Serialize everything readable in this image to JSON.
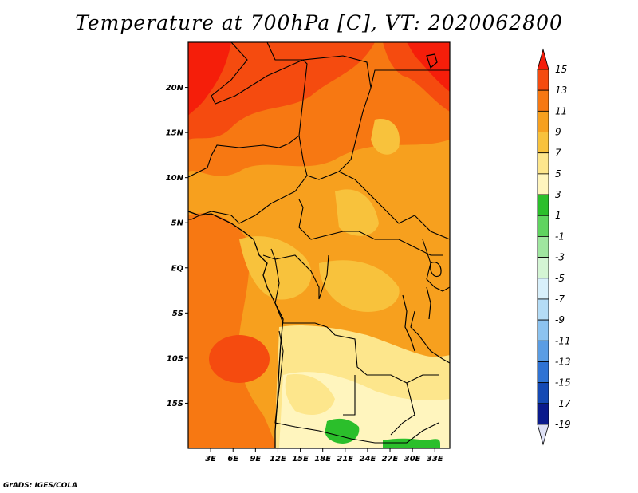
{
  "title": "Temperature at 700hPa [C], VT: 2020062800",
  "credit": "GrADS: IGES/COLA",
  "map": {
    "lat_ticks": [
      "20N",
      "15N",
      "10N",
      "5N",
      "EQ",
      "5S",
      "10S",
      "15S"
    ],
    "lat_values": [
      20,
      15,
      10,
      5,
      0,
      -5,
      -10,
      -15
    ],
    "lon_ticks": [
      "3E",
      "6E",
      "9E",
      "12E",
      "15E",
      "18E",
      "21E",
      "24E",
      "27E",
      "30E",
      "33E"
    ],
    "lon_values": [
      3,
      6,
      9,
      12,
      15,
      18,
      21,
      24,
      27,
      30,
      33
    ],
    "extent": {
      "lon": [
        0,
        35
      ],
      "lat": [
        -20,
        25
      ]
    }
  },
  "legend": {
    "labels": [
      "15",
      "13",
      "11",
      "9",
      "7",
      "5",
      "3",
      "1",
      "-1",
      "-3",
      "-5",
      "-7",
      "-9",
      "-11",
      "-13",
      "-15",
      "-17",
      "-19"
    ],
    "colors": [
      "#f51e0a",
      "#f54b0f",
      "#f77812",
      "#f7a01e",
      "#f8c23c",
      "#fde68c",
      "#fff5be",
      "#2bbf2b",
      "#5fd45f",
      "#9fe69f",
      "#d4f5d4",
      "#d8f0fb",
      "#b4dcf6",
      "#8cc3f0",
      "#5a9de4",
      "#2f73d4",
      "#1449b4",
      "#0a1a8c",
      "#020250"
    ]
  }
}
